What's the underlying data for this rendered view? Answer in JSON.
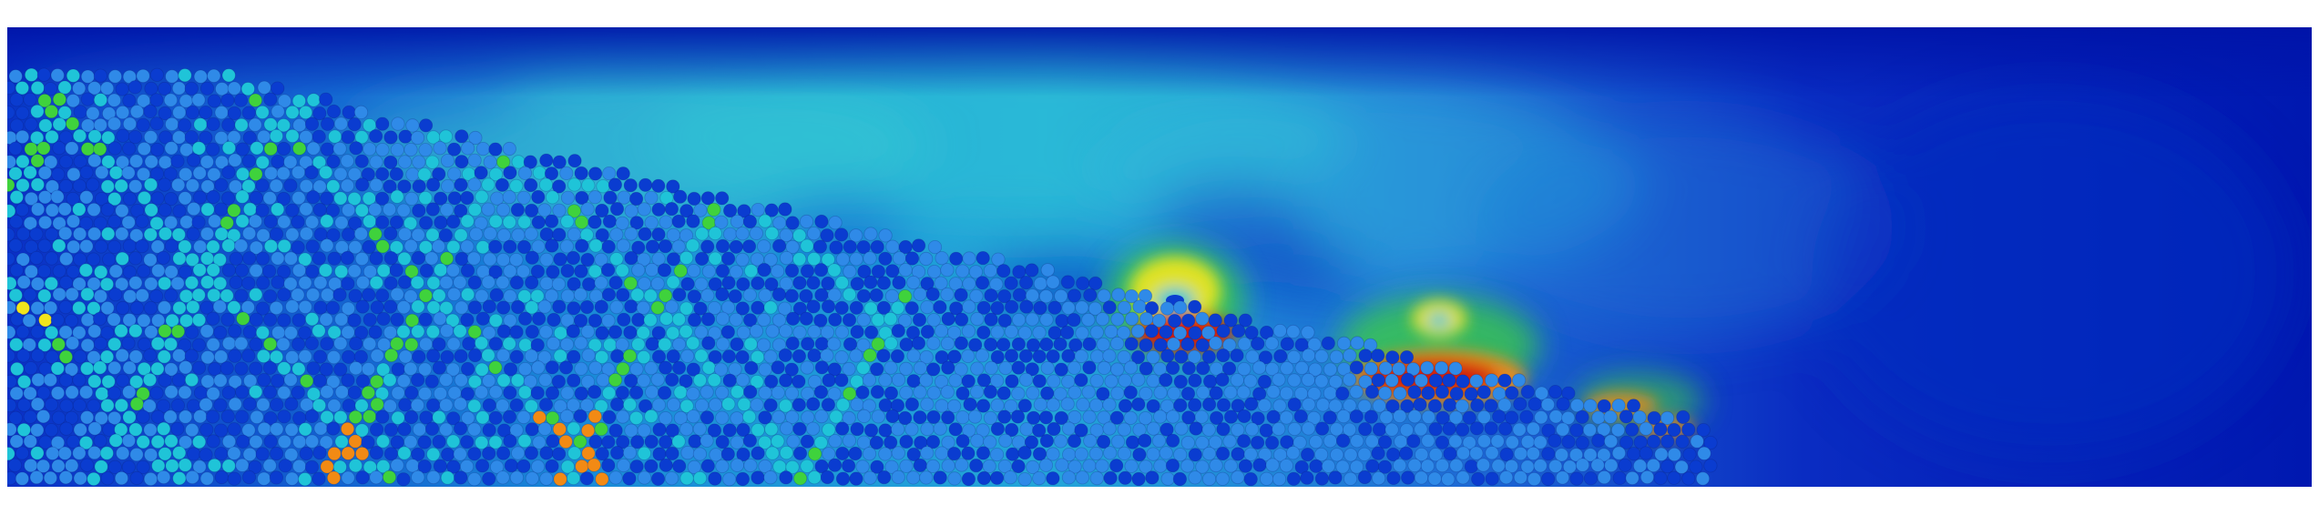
{
  "scene": {
    "palette": {
      "page_background": "#ffffff",
      "deep_blue": "#0018b0",
      "blue": "#0a3cd0",
      "light_blue": "#2f8ae8",
      "cyan": "#1fc4d8",
      "green": "#3fd23c",
      "yellow": "#f2e51c",
      "orange": "#f28a14",
      "red": "#d11a0a"
    },
    "colormap": [
      "#0018b0",
      "#0a3cd0",
      "#2f8ae8",
      "#1fc4d8",
      "#3fd23c",
      "#f2e51c",
      "#f28a14",
      "#d11a0a"
    ]
  }
}
